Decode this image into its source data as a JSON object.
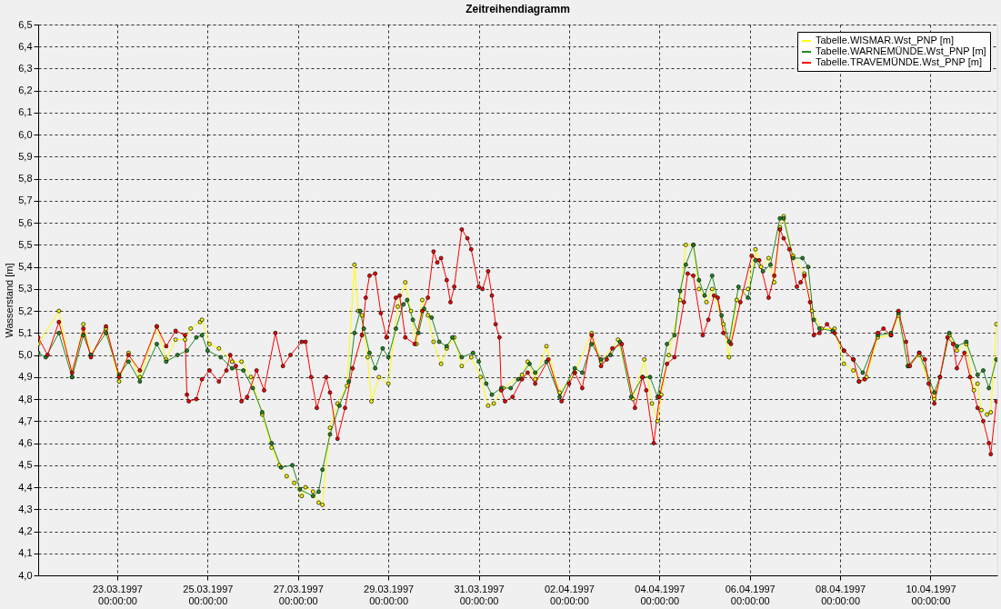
{
  "chart_data": {
    "type": "line",
    "title": "Zeitreihendiagramm",
    "ylabel": "Wasserstand [m]",
    "xlim": [
      "1997-03-21T06:00",
      "1997-04-11T11:30"
    ],
    "xticks": [
      {
        "value": "1997-03-23T00:00",
        "label": "23.03.1997 00:00:00"
      },
      {
        "value": "1997-03-25T00:00",
        "label": "25.03.1997 00:00:00"
      },
      {
        "value": "1997-03-27T00:00",
        "label": "27.03.1997 00:00:00"
      },
      {
        "value": "1997-03-29T00:00",
        "label": "29.03.1997 00:00:00"
      },
      {
        "value": "1997-03-31T00:00",
        "label": "31.03.1997 00:00:00"
      },
      {
        "value": "1997-04-02T00:00",
        "label": "02.04.1997 00:00:00"
      },
      {
        "value": "1997-04-04T00:00",
        "label": "04.04.1997 00:00:00"
      },
      {
        "value": "1997-04-06T00:00",
        "label": "06.04.1997 00:00:00"
      },
      {
        "value": "1997-04-08T00:00",
        "label": "08.04.1997 00:00:00"
      },
      {
        "value": "1997-04-10T00:00",
        "label": "10.04.1997 00:00:00"
      }
    ],
    "ylim": [
      4.0,
      6.5
    ],
    "yticks": [
      {
        "value": 4.0,
        "label": "4,0"
      },
      {
        "value": 4.1,
        "label": "4,1"
      },
      {
        "value": 4.2,
        "label": "4,2"
      },
      {
        "value": 4.3,
        "label": "4,3"
      },
      {
        "value": 4.4,
        "label": "4,4"
      },
      {
        "value": 4.5,
        "label": "4,5"
      },
      {
        "value": 4.6,
        "label": "4,6"
      },
      {
        "value": 4.7,
        "label": "4,7"
      },
      {
        "value": 4.8,
        "label": "4,8"
      },
      {
        "value": 4.9,
        "label": "4,9"
      },
      {
        "value": 5.0,
        "label": "5,0"
      },
      {
        "value": 5.1,
        "label": "5,1"
      },
      {
        "value": 5.2,
        "label": "5,2"
      },
      {
        "value": 5.3,
        "label": "5,3"
      },
      {
        "value": 5.4,
        "label": "5,4"
      },
      {
        "value": 5.5,
        "label": "5,5"
      },
      {
        "value": 5.6,
        "label": "5,6"
      },
      {
        "value": 5.7,
        "label": "5,7"
      },
      {
        "value": 5.8,
        "label": "5,8"
      },
      {
        "value": 5.9,
        "label": "5,9"
      },
      {
        "value": 6.0,
        "label": "6,0"
      },
      {
        "value": 6.1,
        "label": "6,1"
      },
      {
        "value": 6.2,
        "label": "6,2"
      },
      {
        "value": 6.3,
        "label": "6,3"
      },
      {
        "value": 6.4,
        "label": "6,4"
      },
      {
        "value": 6.5,
        "label": "6,5"
      }
    ],
    "grid": true,
    "legend": "top right",
    "marker": "circle",
    "line_style": "solid",
    "series": [
      {
        "name": "Tabelle.WISMAR.Wst_PNP [m]",
        "color": "#ffff00",
        "x": [
          "1997-03-21T06:00",
          "1997-03-21T17:00",
          "1997-03-22T00:00",
          "1997-03-22T06:00",
          "1997-03-22T10:00",
          "1997-03-22T18:00",
          "1997-03-23T01:00",
          "1997-03-23T06:00",
          "1997-03-23T12:00",
          "1997-03-23T21:00",
          "1997-03-24T02:00",
          "1997-03-24T07:00",
          "1997-03-24T12:00",
          "1997-03-24T15:00",
          "1997-03-24T20:00",
          "1997-03-24T21:00",
          "1997-03-25T01:00",
          "1997-03-25T06:00",
          "1997-03-25T13:00",
          "1997-03-25T18:00",
          "1997-03-25T23:00",
          "1997-03-26T05:00",
          "1997-03-26T10:00",
          "1997-03-26T14:00",
          "1997-03-26T18:00",
          "1997-03-26T22:00",
          "1997-03-27T02:00",
          "1997-03-27T04:00",
          "1997-03-27T08:00",
          "1997-03-27T11:00",
          "1997-03-27T13:00",
          "1997-03-27T17:00",
          "1997-03-27T21:00",
          "1997-03-28T02:00",
          "1997-03-28T06:00",
          "1997-03-28T08:00",
          "1997-03-28T10:00",
          "1997-03-28T13:00",
          "1997-03-28T15:00",
          "1997-03-28T19:00",
          "1997-03-29T00:00",
          "1997-03-29T05:00",
          "1997-03-29T09:00",
          "1997-03-29T12:00",
          "1997-03-29T15:00",
          "1997-03-29T18:00",
          "1997-03-29T21:00",
          "1997-03-30T00:00",
          "1997-03-30T04:00",
          "1997-03-30T07:00",
          "1997-03-30T11:00",
          "1997-03-30T15:00",
          "1997-03-30T20:00",
          "1997-03-31T01:00",
          "1997-03-31T05:00",
          "1997-03-31T08:00",
          "1997-03-31T13:00",
          "1997-03-31T23:00",
          "1997-04-01T02:00",
          "1997-04-01T06:00",
          "1997-04-01T12:00",
          "1997-04-01T19:00",
          "1997-04-02T03:00",
          "1997-04-02T12:00",
          "1997-04-02T17:00",
          "1997-04-03T02:00",
          "1997-04-03T10:00",
          "1997-04-03T16:00",
          "1997-04-03T20:00",
          "1997-04-03T23:00",
          "1997-04-04T01:00",
          "1997-04-04T05:00",
          "1997-04-04T11:00",
          "1997-04-04T14:00",
          "1997-04-04T18:00",
          "1997-04-04T21:00",
          "1997-04-05T01:00",
          "1997-04-05T04:00",
          "1997-04-05T10:00",
          "1997-04-05T13:00",
          "1997-04-05T17:00",
          "1997-04-05T23:00",
          "1997-04-06T03:00",
          "1997-04-06T06:00",
          "1997-04-06T10:00",
          "1997-04-06T13:00",
          "1997-04-06T16:00",
          "1997-04-06T18:00",
          "1997-04-06T23:00",
          "1997-04-07T05:00",
          "1997-04-07T09:00",
          "1997-04-07T14:00",
          "1997-04-07T21:00",
          "1997-04-08T02:00",
          "1997-04-08T07:00",
          "1997-04-08T10:00",
          "1997-04-08T14:00",
          "1997-04-08T20:00",
          "1997-04-09T03:00",
          "1997-04-09T07:00",
          "1997-04-09T12:00",
          "1997-04-09T18:00",
          "1997-04-10T02:00",
          "1997-04-10T10:00",
          "1997-04-10T14:00",
          "1997-04-10T19:00",
          "1997-04-10T23:00",
          "1997-04-11T01:00",
          "1997-04-11T03:00",
          "1997-04-11T06:00",
          "1997-04-11T08:00",
          "1997-04-11T11:00"
        ],
        "values": [
          5.05,
          5.2,
          4.9,
          5.14,
          5.0,
          5.12,
          4.88,
          5.01,
          4.9,
          5.13,
          4.98,
          5.07,
          5.07,
          5.12,
          5.15,
          5.16,
          5.05,
          5.03,
          4.97,
          4.97,
          4.9,
          4.73,
          4.58,
          4.5,
          4.45,
          4.42,
          4.36,
          4.4,
          4.38,
          4.33,
          4.32,
          4.67,
          4.78,
          4.86,
          5.41,
          5.2,
          5.18,
          4.99,
          4.79,
          4.9,
          4.87,
          5.22,
          5.33,
          5.2,
          5.05,
          5.25,
          5.18,
          5.06,
          4.96,
          5.03,
          5.08,
          4.95,
          4.99,
          4.9,
          4.77,
          4.78,
          4.85,
          4.91,
          4.97,
          4.89,
          5.04,
          4.83,
          4.92,
          5.1,
          4.97,
          5.07,
          4.8,
          4.98,
          4.78,
          4.7,
          4.82,
          5.0,
          5.25,
          5.5,
          5.5,
          5.3,
          5.24,
          5.3,
          5.14,
          4.99,
          5.25,
          5.3,
          5.48,
          5.4,
          5.44,
          5.33,
          5.58,
          5.63,
          5.45,
          5.37,
          5.2,
          5.12,
          5.12,
          4.96,
          4.93,
          4.88,
          4.9,
          5.08,
          5.09,
          5.18,
          4.95,
          5.0,
          4.8,
          5.09,
          5.02,
          5.05,
          4.84,
          4.87,
          4.75,
          4.73,
          4.74,
          5.14
        ]
      },
      {
        "name": "Tabelle.WARNEMÜNDE.Wst_PNP [m]",
        "color": "#228b22",
        "x": [
          "1997-03-21T06:00",
          "1997-03-21T10:00",
          "1997-03-21T17:00",
          "1997-03-22T00:00",
          "1997-03-22T06:00",
          "1997-03-22T10:00",
          "1997-03-22T18:00",
          "1997-03-23T01:00",
          "1997-03-23T06:00",
          "1997-03-23T12:00",
          "1997-03-23T21:00",
          "1997-03-24T02:00",
          "1997-03-24T08:00",
          "1997-03-24T13:00",
          "1997-03-24T18:00",
          "1997-03-24T21:00",
          "1997-03-25T00:00",
          "1997-03-25T07:00",
          "1997-03-25T13:00",
          "1997-03-25T19:00",
          "1997-03-26T00:00",
          "1997-03-26T05:00",
          "1997-03-26T10:00",
          "1997-03-26T15:00",
          "1997-03-26T21:00",
          "1997-03-27T01:00",
          "1997-03-27T08:00",
          "1997-03-27T11:00",
          "1997-03-27T13:00",
          "1997-03-27T17:00",
          "1997-03-27T22:00",
          "1997-03-28T03:00",
          "1997-03-28T06:00",
          "1997-03-28T09:00",
          "1997-03-28T11:00",
          "1997-03-28T14:00",
          "1997-03-28T17:00",
          "1997-03-28T21:00",
          "1997-03-29T00:00",
          "1997-03-29T04:00",
          "1997-03-29T08:00",
          "1997-03-29T10:00",
          "1997-03-29T13:00",
          "1997-03-29T16:00",
          "1997-03-29T19:00",
          "1997-03-29T23:00",
          "1997-03-30T03:00",
          "1997-03-30T07:00",
          "1997-03-30T10:00",
          "1997-03-30T15:00",
          "1997-03-30T21:00",
          "1997-03-31T00:00",
          "1997-03-31T04:00",
          "1997-03-31T07:00",
          "1997-03-31T12:00",
          "1997-03-31T17:00",
          "1997-03-31T21:00",
          "1997-04-01T03:00",
          "1997-04-01T06:00",
          "1997-04-01T12:00",
          "1997-04-01T19:00",
          "1997-04-02T03:00",
          "1997-04-02T07:00",
          "1997-04-02T12:00",
          "1997-04-02T17:00",
          "1997-04-02T22:00",
          "1997-04-03T03:00",
          "1997-04-03T09:00",
          "1997-04-03T15:00",
          "1997-04-03T19:00",
          "1997-04-03T23:00",
          "1997-04-04T04:00",
          "1997-04-04T08:00",
          "1997-04-04T11:00",
          "1997-04-04T14:00",
          "1997-04-04T18:00",
          "1997-04-04T21:00",
          "1997-04-05T00:00",
          "1997-04-05T04:00",
          "1997-04-05T09:00",
          "1997-04-05T13:00",
          "1997-04-05T18:00",
          "1997-04-05T23:00",
          "1997-04-06T03:00",
          "1997-04-06T07:00",
          "1997-04-06T11:00",
          "1997-04-06T16:00",
          "1997-04-06T18:00",
          "1997-04-06T23:00",
          "1997-04-07T04:00",
          "1997-04-07T07:00",
          "1997-04-07T10:00",
          "1997-04-07T13:00",
          "1997-04-07T20:00",
          "1997-04-08T02:00",
          "1997-04-08T07:00",
          "1997-04-08T12:00",
          "1997-04-08T20:00",
          "1997-04-09T03:00",
          "1997-04-09T07:00",
          "1997-04-09T12:00",
          "1997-04-09T18:00",
          "1997-04-10T02:00",
          "1997-04-10T05:00",
          "1997-04-10T10:00",
          "1997-04-10T14:00",
          "1997-04-10T19:00",
          "1997-04-11T01:00",
          "1997-04-11T04:00",
          "1997-04-11T07:00",
          "1997-04-11T11:00"
        ],
        "values": [
          5.01,
          4.99,
          5.1,
          4.9,
          5.09,
          5.0,
          5.1,
          4.91,
          4.97,
          4.88,
          5.05,
          4.97,
          5.0,
          5.02,
          5.08,
          5.09,
          5.02,
          4.99,
          4.94,
          4.93,
          4.85,
          4.74,
          4.6,
          4.49,
          4.5,
          4.39,
          4.36,
          4.38,
          4.48,
          4.64,
          4.77,
          4.88,
          5.1,
          5.2,
          5.12,
          5.01,
          4.94,
          5.03,
          4.99,
          5.12,
          5.23,
          5.25,
          5.16,
          5.1,
          5.21,
          5.17,
          5.06,
          5.04,
          5.08,
          4.99,
          5.01,
          4.97,
          4.87,
          4.82,
          4.85,
          4.85,
          4.89,
          4.96,
          4.92,
          4.97,
          4.81,
          4.94,
          4.92,
          5.05,
          4.98,
          5.0,
          5.06,
          4.81,
          4.9,
          4.9,
          4.81,
          5.05,
          5.09,
          5.29,
          5.41,
          5.5,
          5.34,
          5.27,
          5.36,
          5.18,
          5.06,
          5.31,
          5.26,
          5.43,
          5.38,
          5.41,
          5.62,
          5.62,
          5.44,
          5.44,
          5.4,
          5.16,
          5.12,
          5.11,
          5.02,
          4.98,
          4.92,
          5.09,
          5.1,
          5.19,
          4.95,
          5.01,
          4.83,
          4.9,
          5.1,
          5.04,
          5.06,
          4.91,
          4.93,
          4.85,
          4.98
        ]
      },
      {
        "name": "Tabelle.TRAVEMÜNDE.Wst_PNP [m]",
        "color": "#ff0000",
        "x": [
          "1997-03-21T06:00",
          "1997-03-21T11:00",
          "1997-03-21T17:00",
          "1997-03-22T00:00",
          "1997-03-22T06:00",
          "1997-03-22T10:00",
          "1997-03-22T18:00",
          "1997-03-23T01:00",
          "1997-03-23T06:00",
          "1997-03-23T12:00",
          "1997-03-23T21:00",
          "1997-03-24T02:00",
          "1997-03-24T07:00",
          "1997-03-24T12:00",
          "1997-03-24T13:00",
          "1997-03-24T14:00",
          "1997-03-24T18:00",
          "1997-03-24T21:00",
          "1997-03-25T01:00",
          "1997-03-25T06:00",
          "1997-03-25T10:00",
          "1997-03-25T12:00",
          "1997-03-25T15:00",
          "1997-03-25T18:00",
          "1997-03-25T21:00",
          "1997-03-26T02:00",
          "1997-03-26T06:00",
          "1997-03-26T12:00",
          "1997-03-26T16:00",
          "1997-03-26T20:00",
          "1997-03-27T02:00",
          "1997-03-27T04:00",
          "1997-03-27T07:00",
          "1997-03-27T10:00",
          "1997-03-27T15:00",
          "1997-03-27T17:00",
          "1997-03-27T21:00",
          "1997-03-28T01:00",
          "1997-03-28T05:00",
          "1997-03-28T10:00",
          "1997-03-28T12:00",
          "1997-03-28T14:00",
          "1997-03-28T17:00",
          "1997-03-28T20:00",
          "1997-03-28T23:00",
          "1997-03-29T04:00",
          "1997-03-29T06:00",
          "1997-03-29T09:00",
          "1997-03-29T14:00",
          "1997-03-29T18:00",
          "1997-03-29T21:00",
          "1997-03-30T00:00",
          "1997-03-30T02:00",
          "1997-03-30T04:00",
          "1997-03-30T07:00",
          "1997-03-30T09:00",
          "1997-03-30T11:00",
          "1997-03-30T15:00",
          "1997-03-30T18:00",
          "1997-03-30T20:00",
          "1997-03-31T00:00",
          "1997-03-31T02:00",
          "1997-03-31T05:00",
          "1997-03-31T07:00",
          "1997-03-31T09:00",
          "1997-03-31T11:00",
          "1997-03-31T12:00",
          "1997-03-31T14:00",
          "1997-03-31T18:00",
          "1997-03-31T23:00",
          "1997-04-01T02:00",
          "1997-04-01T06:00",
          "1997-04-01T13:00",
          "1997-04-01T20:00",
          "1997-04-02T00:00",
          "1997-04-02T03:00",
          "1997-04-02T07:00",
          "1997-04-02T12:00",
          "1997-04-02T17:00",
          "1997-04-02T20:00",
          "1997-04-02T23:00",
          "1997-04-03T04:00",
          "1997-04-03T11:00",
          "1997-04-03T15:00",
          "1997-04-03T17:00",
          "1997-04-03T21:00",
          "1997-04-04T00:00",
          "1997-04-04T04:00",
          "1997-04-04T08:00",
          "1997-04-04T13:00",
          "1997-04-04T15:00",
          "1997-04-04T18:00",
          "1997-04-04T23:00",
          "1997-04-05T02:00",
          "1997-04-05T05:00",
          "1997-04-05T07:00",
          "1997-04-05T10:00",
          "1997-04-05T14:00",
          "1997-04-05T19:00",
          "1997-04-06T01:00",
          "1997-04-06T05:00",
          "1997-04-06T10:00",
          "1997-04-06T13:00",
          "1997-04-06T16:00",
          "1997-04-06T18:00",
          "1997-04-06T21:00",
          "1997-04-07T01:00",
          "1997-04-07T03:00",
          "1997-04-07T05:00",
          "1997-04-07T08:00",
          "1997-04-07T10:00",
          "1997-04-07T13:00",
          "1997-04-07T17:00",
          "1997-04-07T21:00",
          "1997-04-08T02:00",
          "1997-04-08T07:00",
          "1997-04-08T10:00",
          "1997-04-08T13:00",
          "1997-04-08T20:00",
          "1997-04-08T23:00",
          "1997-04-09T03:00",
          "1997-04-09T07:00",
          "1997-04-09T11:00",
          "1997-04-09T13:00",
          "1997-04-09T18:00",
          "1997-04-09T21:00",
          "1997-04-09T23:00",
          "1997-04-10T02:00",
          "1997-04-10T05:00",
          "1997-04-10T09:00",
          "1997-04-10T12:00",
          "1997-04-10T14:00",
          "1997-04-10T18:00",
          "1997-04-10T21:00",
          "1997-04-11T01:00",
          "1997-04-11T04:00",
          "1997-04-11T07:00",
          "1997-04-11T08:00",
          "1997-04-11T11:00"
        ],
        "values": [
          5.08,
          5.0,
          5.15,
          4.92,
          5.12,
          4.99,
          5.13,
          4.9,
          5.0,
          4.93,
          5.13,
          5.04,
          5.11,
          5.09,
          4.82,
          4.79,
          4.8,
          4.89,
          4.93,
          4.88,
          4.93,
          5.0,
          4.95,
          4.79,
          4.81,
          4.93,
          4.84,
          5.1,
          4.95,
          5.0,
          5.06,
          5.06,
          4.9,
          4.76,
          4.9,
          4.83,
          4.62,
          4.76,
          4.94,
          5.09,
          5.26,
          5.36,
          5.37,
          5.19,
          5.08,
          5.26,
          5.27,
          5.08,
          5.05,
          5.2,
          5.26,
          5.47,
          5.42,
          5.44,
          5.34,
          5.24,
          5.31,
          5.57,
          5.53,
          5.48,
          5.31,
          5.3,
          5.38,
          5.27,
          5.14,
          5.08,
          4.84,
          4.79,
          4.81,
          4.89,
          4.92,
          4.87,
          4.98,
          4.79,
          4.87,
          4.92,
          4.85,
          5.09,
          4.95,
          4.98,
          5.03,
          5.05,
          4.76,
          4.9,
          4.84,
          4.6,
          4.81,
          4.96,
          4.99,
          5.24,
          5.37,
          5.36,
          5.09,
          5.16,
          5.27,
          5.26,
          5.1,
          5.05,
          5.24,
          5.45,
          5.43,
          5.26,
          5.36,
          5.57,
          5.53,
          5.48,
          5.31,
          5.33,
          5.36,
          5.24,
          5.09,
          5.1,
          5.14,
          5.1,
          5.02,
          4.98,
          4.88,
          4.89,
          5.1,
          5.12,
          5.09,
          5.2,
          5.06,
          4.95,
          5.01,
          4.98,
          4.87,
          4.78,
          4.9,
          5.08,
          5.05,
          4.94,
          5.01,
          4.9,
          4.76,
          4.7,
          4.6,
          4.55,
          4.79
        ]
      }
    ]
  }
}
